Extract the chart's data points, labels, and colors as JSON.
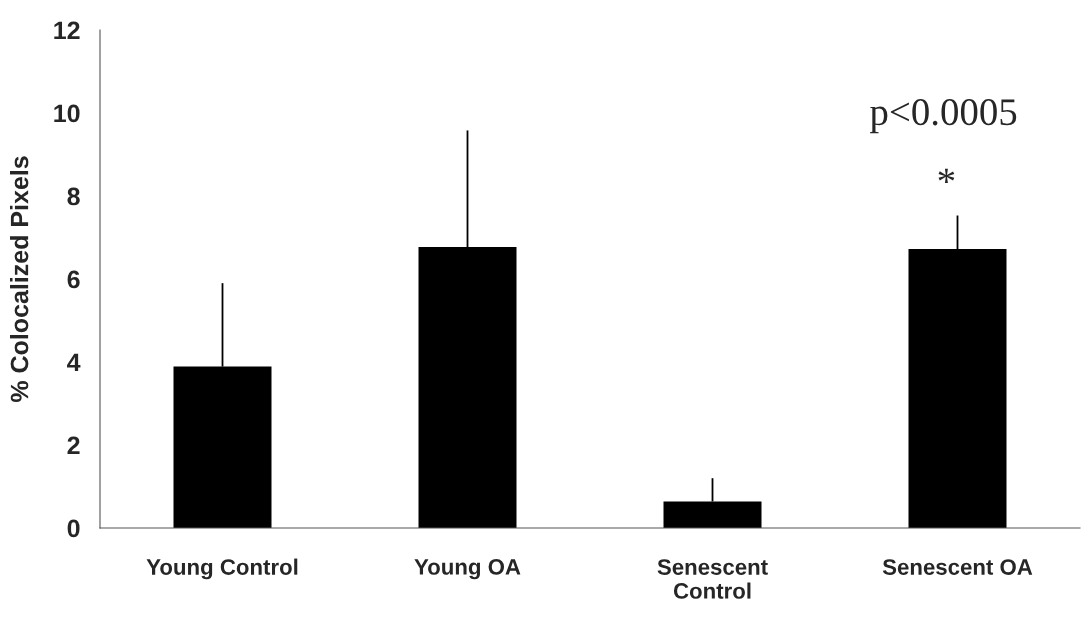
{
  "chart_data": {
    "type": "bar",
    "ylabel": "% Colocalized Pixels",
    "categories": [
      "Young Control",
      "Young OA",
      "Senescent\nControl",
      "Senescent OA"
    ],
    "values": [
      3.89,
      6.77,
      0.64,
      6.72
    ],
    "errors": [
      [
        3.89,
        5.9
      ],
      [
        6.77,
        9.58
      ],
      [
        0.64,
        1.2
      ],
      [
        6.72,
        7.53
      ]
    ],
    "color": "#000000",
    "ylim": [
      0,
      12
    ],
    "yticks": [
      0,
      2,
      4,
      6,
      8,
      10,
      12
    ],
    "grid": false,
    "annotations": [
      "p<0.0005",
      "*"
    ]
  }
}
